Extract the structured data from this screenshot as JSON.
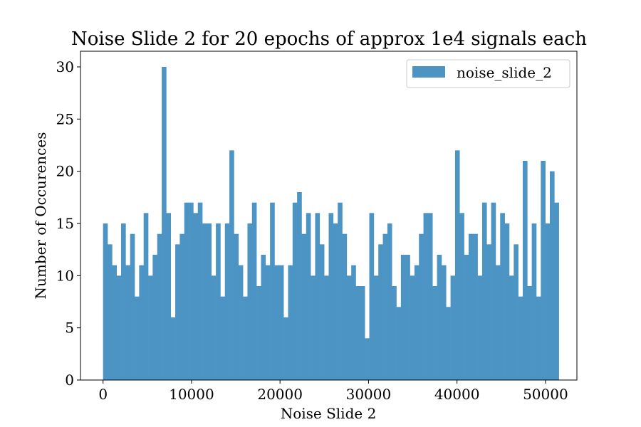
{
  "chart_data": {
    "type": "bar",
    "title": "Noise Slide 2 for 20 epochs of approx 1e4 signals each",
    "xlabel": "Noise Slide 2",
    "ylabel": "Number of Occurences",
    "xlim": [
      -2550,
      53550
    ],
    "ylim": [
      0,
      31.5
    ],
    "xticks": [
      0,
      10000,
      20000,
      30000,
      40000,
      50000
    ],
    "xtick_labels": [
      "0",
      "10000",
      "20000",
      "30000",
      "40000",
      "50000"
    ],
    "yticks": [
      0,
      5,
      10,
      15,
      20,
      25,
      30
    ],
    "ytick_labels": [
      "0",
      "5",
      "10",
      "15",
      "20",
      "25",
      "30"
    ],
    "bin_start": 0,
    "bin_width": 510,
    "values": [
      15,
      13,
      11,
      10,
      15,
      11,
      14,
      8,
      11,
      16,
      10,
      12,
      14,
      30,
      16,
      6,
      13,
      14,
      17,
      17,
      16,
      17,
      15,
      15,
      10,
      15,
      8,
      15,
      22,
      14,
      11,
      8,
      15,
      17,
      9,
      12,
      11,
      17,
      11,
      11,
      6,
      11,
      17,
      18,
      14,
      16,
      10,
      16,
      13,
      10,
      16,
      15,
      17,
      14,
      10,
      11,
      9,
      9,
      4,
      16,
      10,
      13,
      14,
      15,
      9,
      7,
      12,
      12,
      10,
      11,
      14,
      16,
      16,
      9,
      12,
      11,
      7,
      10,
      22,
      16,
      12,
      14,
      14,
      10,
      17,
      13,
      17,
      11,
      16,
      15,
      10,
      13,
      8,
      21,
      9,
      15,
      8,
      21,
      15,
      20,
      17
    ],
    "color": "#4c94c4",
    "grid": false,
    "legend": {
      "position": "top-right",
      "entries": [
        {
          "name": "noise_slide_2",
          "color": "#4c94c4"
        }
      ]
    }
  }
}
